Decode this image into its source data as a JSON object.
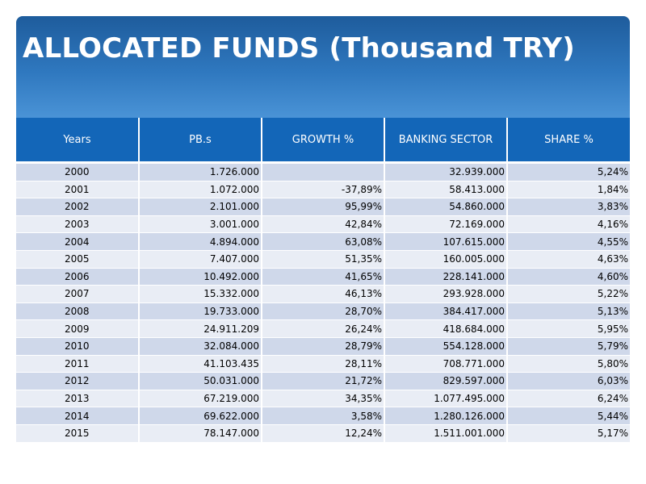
{
  "title": "ALLOCATED FUNDS (Thousand TRY)",
  "colors": {
    "banner": "#2f78bf",
    "header": "#1366b8",
    "row_odd": "#cfd8ea",
    "row_even": "#e9edf5"
  },
  "table": {
    "headers": [
      "Years",
      "PB.s",
      "GROWTH %",
      "BANKING SECTOR",
      "SHARE %"
    ],
    "rows": [
      [
        "2000",
        "1.726.000",
        "",
        "32.939.000",
        "5,24%"
      ],
      [
        "2001",
        "1.072.000",
        "-37,89%",
        "58.413.000",
        "1,84%"
      ],
      [
        "2002",
        "2.101.000",
        "95,99%",
        "54.860.000",
        "3,83%"
      ],
      [
        "2003",
        "3.001.000",
        "42,84%",
        "72.169.000",
        "4,16%"
      ],
      [
        "2004",
        "4.894.000",
        "63,08%",
        "107.615.000",
        "4,55%"
      ],
      [
        "2005",
        "7.407.000",
        "51,35%",
        "160.005.000",
        "4,63%"
      ],
      [
        "2006",
        "10.492.000",
        "41,65%",
        "228.141.000",
        "4,60%"
      ],
      [
        "2007",
        "15.332.000",
        "46,13%",
        "293.928.000",
        "5,22%"
      ],
      [
        "2008",
        "19.733.000",
        "28,70%",
        "384.417.000",
        "5,13%"
      ],
      [
        "2009",
        "24.911.209",
        "26,24%",
        "418.684.000",
        "5,95%"
      ],
      [
        "2010",
        "32.084.000",
        "28,79%",
        "554.128.000",
        "5,79%"
      ],
      [
        "2011",
        "41.103.435",
        "28,11%",
        "708.771.000",
        "5,80%"
      ],
      [
        "2012",
        "50.031.000",
        "21,72%",
        "829.597.000",
        "6,03%"
      ],
      [
        "2013",
        "67.219.000",
        "34,35%",
        "1.077.495.000",
        "6,24%"
      ],
      [
        "2014",
        "69.622.000",
        "3,58%",
        "1.280.126.000",
        "5,44%"
      ],
      [
        "2015",
        "78.147.000",
        "12,24%",
        "1.511.001.000",
        "5,17%"
      ]
    ]
  }
}
